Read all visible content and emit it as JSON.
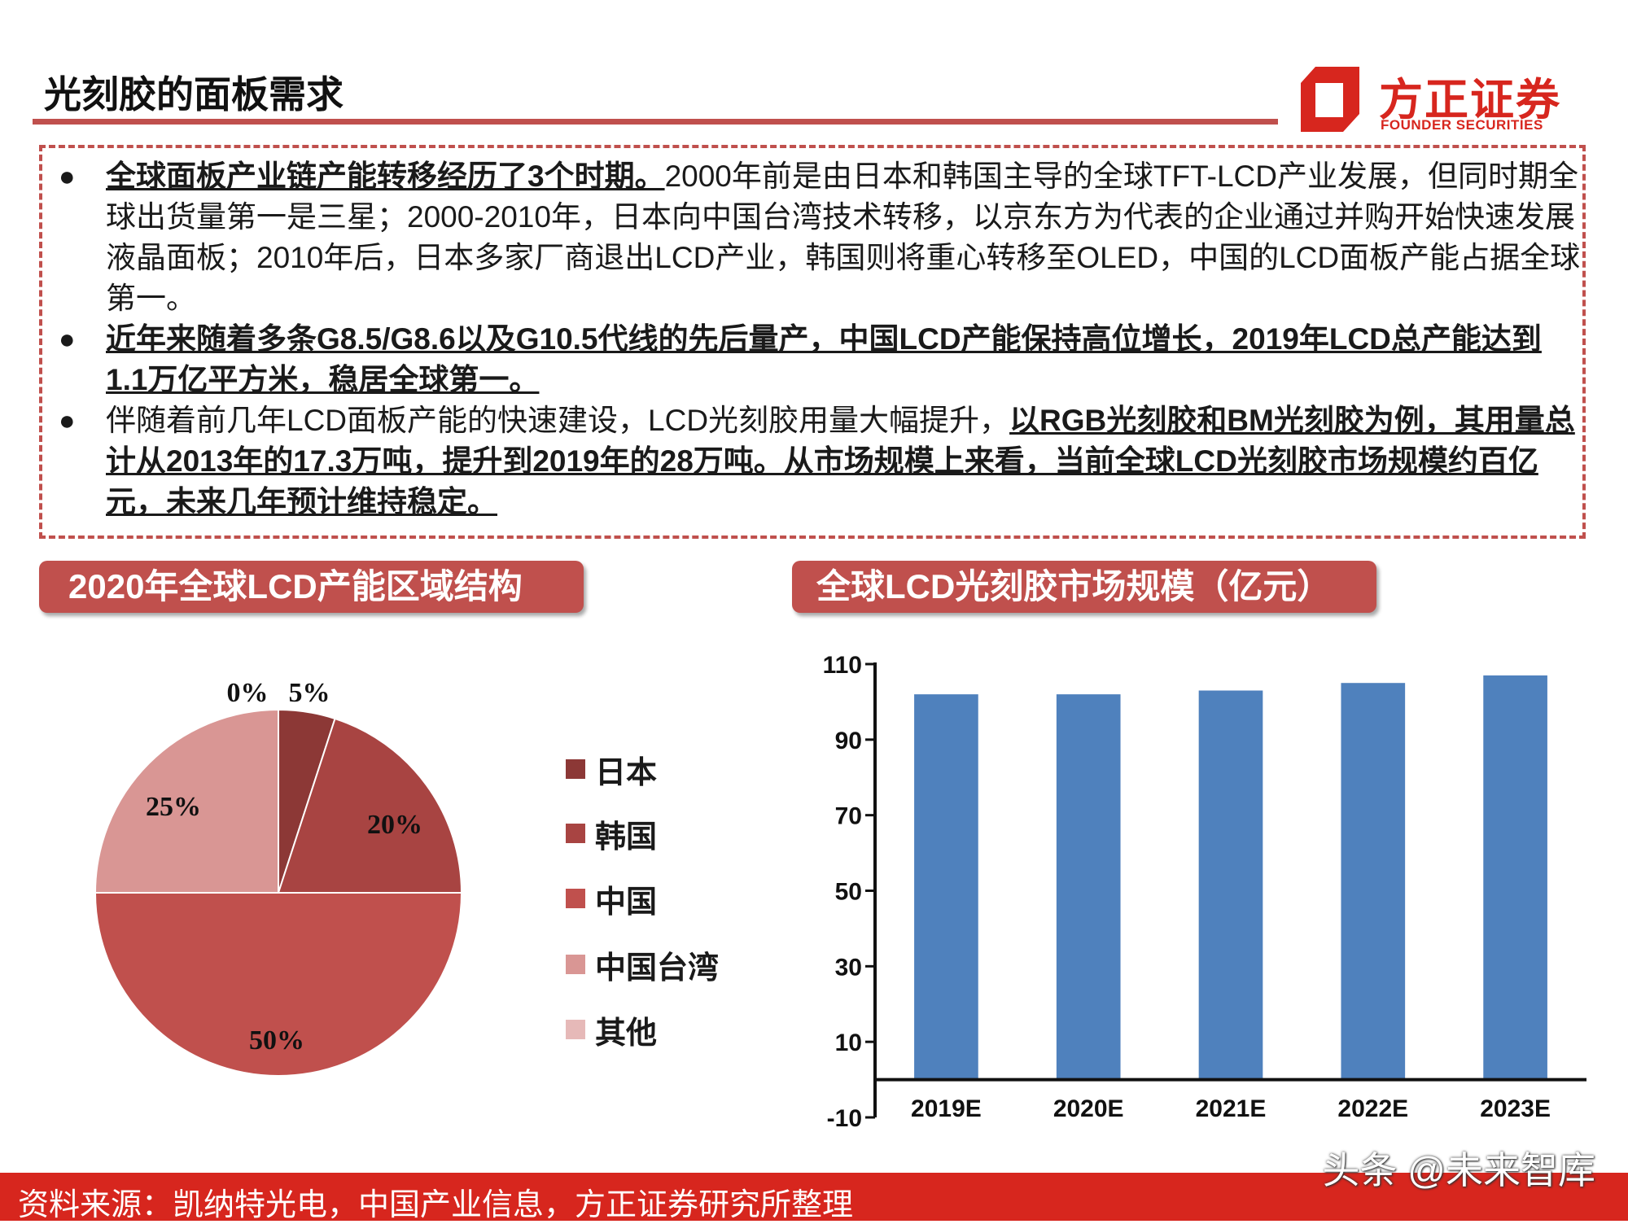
{
  "header": {
    "title": "光刻胶的面板需求",
    "logo_cn": "方正证券",
    "logo_en": "FOUNDER SECURITIES"
  },
  "colors": {
    "brand_red": "#c0504d",
    "logo_red": "#d7261e",
    "bar_blue": "#4f81bd"
  },
  "bullets": [
    {
      "segments": [
        {
          "text": "全球面板产业链产能转移经历了3个时期。",
          "bold": true
        },
        {
          "text": "2000年前是由日本和韩国主导的全球TFT-LCD产业发展，但同时期全球出货量第一是三星；2000-2010年，日本向中国台湾技术转移，以京东方为代表的企业通过并购开始快速发展液晶面板；2010年后，日本多家厂商退出LCD产业，韩国则将重心转移至OLED，中国的LCD面板产能占据全球第一。",
          "bold": false
        }
      ]
    },
    {
      "segments": [
        {
          "text": "近年来随着多条G8.5/G8.6以及G10.5代线的先后量产，中国LCD产能保持高位增长，2019年LCD总产能达到1.1万亿平方米，稳居全球第一。",
          "bold": true
        }
      ]
    },
    {
      "segments": [
        {
          "text": "伴随着前几年LCD面板产能的快速建设，LCD光刻胶用量大幅提升，",
          "bold": false
        },
        {
          "text": "以RGB光刻胶和BM光刻胶为例，其用量总计从2013年的17.3万吨，提升到2019年的28万吨。从市场规模上来看，当前全球LCD光刻胶市场规模约百亿元，未来几年预计维持稳定。",
          "bold": true
        }
      ]
    }
  ],
  "chart_data": [
    {
      "type": "pie",
      "title": "2020年全球LCD产能区域结构",
      "categories": [
        "日本",
        "韩国",
        "中国",
        "中国台湾",
        "其他"
      ],
      "values": [
        5,
        20,
        50,
        25,
        0
      ],
      "labels": [
        "5%",
        "20%",
        "50%",
        "25%",
        "0%"
      ],
      "colors": [
        "#8c3836",
        "#a84442",
        "#c0504d",
        "#d99694",
        "#e6b9b8"
      ],
      "legend": "right"
    },
    {
      "type": "bar",
      "title": "全球LCD光刻胶市场规模（亿元）",
      "categories": [
        "2019E",
        "2020E",
        "2021E",
        "2022E",
        "2023E"
      ],
      "values": [
        102,
        102,
        103,
        105,
        107
      ],
      "ylim": [
        -10,
        110
      ],
      "yticks": [
        "110",
        "90",
        "70",
        "50",
        "30",
        "10",
        "-10"
      ],
      "ytick_values": [
        110,
        90,
        70,
        50,
        30,
        10,
        -10
      ],
      "grid": false
    }
  ],
  "footer": {
    "source": "资料来源：凯纳特光电，中国产业信息，方正证券研究所整理",
    "watermark": "头条 @未来智库"
  }
}
